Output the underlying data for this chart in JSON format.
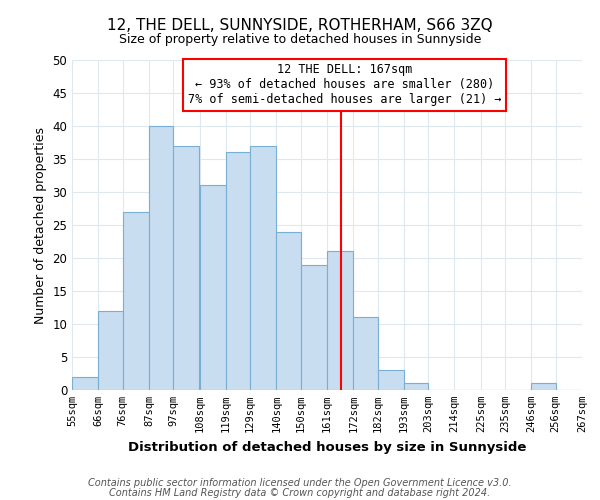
{
  "title": "12, THE DELL, SUNNYSIDE, ROTHERHAM, S66 3ZQ",
  "subtitle": "Size of property relative to detached houses in Sunnyside",
  "xlabel": "Distribution of detached houses by size in Sunnyside",
  "ylabel": "Number of detached properties",
  "footer_lines": [
    "Contains HM Land Registry data © Crown copyright and database right 2024.",
    "Contains public sector information licensed under the Open Government Licence v3.0."
  ],
  "bin_edges": [
    55,
    66,
    76,
    87,
    97,
    108,
    119,
    129,
    140,
    150,
    161,
    172,
    182,
    193,
    203,
    214,
    225,
    235,
    246,
    256,
    267
  ],
  "bin_labels": [
    "55sqm",
    "66sqm",
    "76sqm",
    "87sqm",
    "97sqm",
    "108sqm",
    "119sqm",
    "129sqm",
    "140sqm",
    "150sqm",
    "161sqm",
    "172sqm",
    "182sqm",
    "193sqm",
    "203sqm",
    "214sqm",
    "225sqm",
    "235sqm",
    "246sqm",
    "256sqm",
    "267sqm"
  ],
  "counts": [
    2,
    12,
    27,
    40,
    37,
    31,
    36,
    37,
    24,
    19,
    21,
    11,
    3,
    1,
    0,
    0,
    0,
    0,
    1,
    0
  ],
  "bar_color": "#c8ddf0",
  "bar_edge_color": "#7aafd4",
  "vline_x": 167,
  "vline_color": "red",
  "annotation_title": "12 THE DELL: 167sqm",
  "annotation_line1": "← 93% of detached houses are smaller (280)",
  "annotation_line2": "7% of semi-detached houses are larger (21) →",
  "ylim": [
    0,
    50
  ],
  "yticks": [
    0,
    5,
    10,
    15,
    20,
    25,
    30,
    35,
    40,
    45,
    50
  ],
  "background_color": "#ffffff",
  "grid_color": "#dde8f0"
}
